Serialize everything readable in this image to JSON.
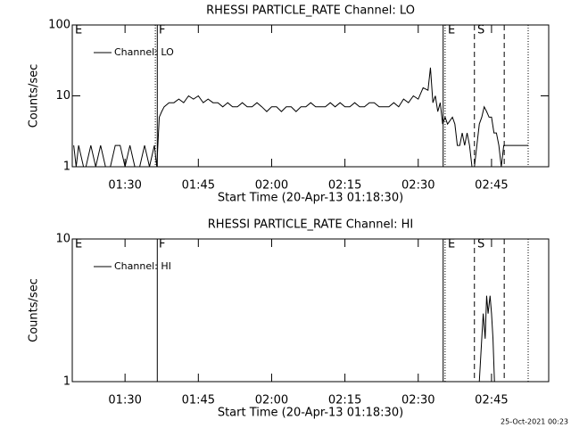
{
  "chart_data": [
    {
      "type": "line",
      "title": "RHESSI PARTICLE_RATE Channel: LO",
      "xlabel": "Start Time (20-Apr-13 01:18:30)",
      "ylabel": "Counts/sec",
      "log_y": true,
      "legend": "upper left",
      "xlim": [
        79.2,
        176.7
      ],
      "ylim": [
        1,
        100
      ],
      "xticks": [
        {
          "value": 90,
          "label": "01:30"
        },
        {
          "value": 105,
          "label": "01:45"
        },
        {
          "value": 120,
          "label": "02:00"
        },
        {
          "value": 135,
          "label": "02:15"
        },
        {
          "value": 150,
          "label": "02:30"
        },
        {
          "value": 165,
          "label": "02:45"
        }
      ],
      "yticks": [
        1,
        10,
        100
      ],
      "x": [
        79.5,
        80,
        80.5,
        81.5,
        82,
        83,
        84,
        85,
        86,
        87,
        88,
        89,
        90,
        91,
        92,
        93,
        94,
        95,
        96,
        96.5,
        97,
        97.5,
        98,
        99,
        100,
        101,
        102,
        103,
        104,
        105,
        106,
        107,
        108,
        109,
        110,
        111,
        112,
        113,
        114,
        115,
        116,
        117,
        118,
        119,
        120,
        121,
        122,
        123,
        124,
        125,
        126,
        127,
        128,
        129,
        130,
        131,
        132,
        133,
        134,
        135,
        136,
        137,
        138,
        139,
        140,
        141,
        142,
        143,
        144,
        145,
        146,
        147,
        148,
        149,
        150,
        151,
        152,
        152.5,
        153,
        153.5,
        154,
        154.5,
        155,
        155.5,
        156,
        157,
        157.5,
        158,
        158.5,
        159,
        159.5,
        160,
        160.5,
        161,
        161.5,
        162,
        162.5,
        163,
        163.5,
        164,
        164.5,
        165,
        165.5,
        166,
        166.5,
        167,
        167.5,
        168,
        170,
        172.5
      ],
      "series": [
        {
          "name": "Channel: LO",
          "color": "#000000",
          "values": [
            2,
            1,
            2,
            1,
            1,
            2,
            1,
            2,
            1,
            1,
            2,
            2,
            1,
            2,
            1,
            1,
            2,
            1,
            2,
            1,
            5,
            6,
            7,
            8,
            8,
            9,
            8,
            10,
            9,
            10,
            8,
            9,
            8,
            8,
            7,
            8,
            7,
            7,
            8,
            7,
            7,
            8,
            7,
            6,
            7,
            7,
            6,
            7,
            7,
            6,
            7,
            7,
            8,
            7,
            7,
            7,
            8,
            7,
            8,
            7,
            7,
            8,
            7,
            7,
            8,
            8,
            7,
            7,
            7,
            8,
            7,
            9,
            8,
            10,
            9,
            13,
            12,
            25,
            8,
            10,
            6,
            8,
            4,
            5,
            4,
            5,
            4,
            2,
            2,
            3,
            2,
            3,
            2,
            1,
            1,
            2,
            4,
            5,
            7,
            6,
            5,
            5,
            3,
            3,
            2,
            1,
            2,
            2,
            2,
            2
          ]
        }
      ],
      "annotations": [
        {
          "text": "E",
          "x": 79.75
        },
        {
          "text": "F",
          "x": 96.9
        },
        {
          "text": "E",
          "x": 156.06
        },
        {
          "text": "S",
          "x": 162.1
        }
      ],
      "vlines": [
        {
          "x": 96.2,
          "style": "dotted"
        },
        {
          "x": 96.6,
          "style": "solid"
        },
        {
          "x": 155.1,
          "style": "solid"
        },
        {
          "x": 155.5,
          "style": "dotted"
        },
        {
          "x": 161.5,
          "style": "dashed"
        },
        {
          "x": 167.6,
          "style": "dashed"
        },
        {
          "x": 172.5,
          "style": "dotted"
        }
      ]
    },
    {
      "type": "line",
      "title": "RHESSI PARTICLE_RATE Channel: HI",
      "xlabel": "Start Time (20-Apr-13 01:18:30)",
      "ylabel": "Counts/sec",
      "log_y": true,
      "legend": "upper left",
      "xlim": [
        79.2,
        176.7
      ],
      "ylim": [
        1,
        10
      ],
      "xticks": [
        {
          "value": 90,
          "label": "01:30"
        },
        {
          "value": 105,
          "label": "01:45"
        },
        {
          "value": 120,
          "label": "02:00"
        },
        {
          "value": 135,
          "label": "02:15"
        },
        {
          "value": 150,
          "label": "02:30"
        },
        {
          "value": 165,
          "label": "02:45"
        }
      ],
      "yticks": [
        1,
        10
      ],
      "x": [
        162.5,
        163,
        163.3,
        163.7,
        164,
        164.3,
        164.7,
        165,
        165.3,
        165.6
      ],
      "series": [
        {
          "name": "Channel: HI",
          "color": "#000000",
          "values": [
            1,
            2,
            3,
            2,
            4,
            3,
            4,
            3,
            2,
            1
          ]
        }
      ],
      "annotations": [
        {
          "text": "E",
          "x": 79.75
        },
        {
          "text": "F",
          "x": 96.9
        },
        {
          "text": "E",
          "x": 156.06
        },
        {
          "text": "S",
          "x": 162.1
        }
      ],
      "vlines": [
        {
          "x": 96.6,
          "style": "solid"
        },
        {
          "x": 155.1,
          "style": "solid"
        },
        {
          "x": 155.5,
          "style": "dotted"
        },
        {
          "x": 161.5,
          "style": "dashed"
        },
        {
          "x": 167.6,
          "style": "dashed"
        },
        {
          "x": 172.5,
          "style": "dotted"
        }
      ]
    }
  ],
  "footer": "25-Oct-2021 00:23"
}
